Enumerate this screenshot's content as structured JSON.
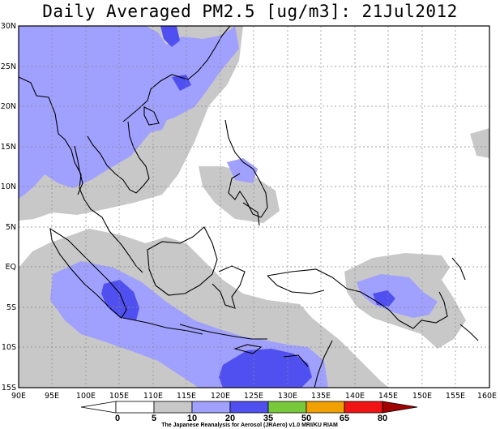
{
  "title": "Daily Averaged PM2.5 [ug/m3]: 21Jul2012",
  "lat_labels": [
    "30N",
    "25N",
    "20N",
    "15N",
    "10N",
    "5N",
    "EQ",
    "5S",
    "10S",
    "15S"
  ],
  "lon_labels": [
    "90E",
    "95E",
    "100E",
    "105E",
    "110E",
    "115E",
    "120E",
    "125E",
    "130E",
    "135E",
    "140E",
    "145E",
    "150E",
    "155E",
    "160E"
  ],
  "colorbar": {
    "labels": [
      "0",
      "5",
      "10",
      "20",
      "35",
      "50",
      "65",
      "80"
    ],
    "colors": [
      "#ffffff",
      "#ffffff",
      "#c8c8c8",
      "#a0a0ff",
      "#5050f0",
      "#78c83c",
      "#f0a000",
      "#f01414",
      "#a00000"
    ]
  },
  "credit": "The Japanese Reanalysis for Aerosol (JRAero) v1.0 MRI/KU RIAM"
}
